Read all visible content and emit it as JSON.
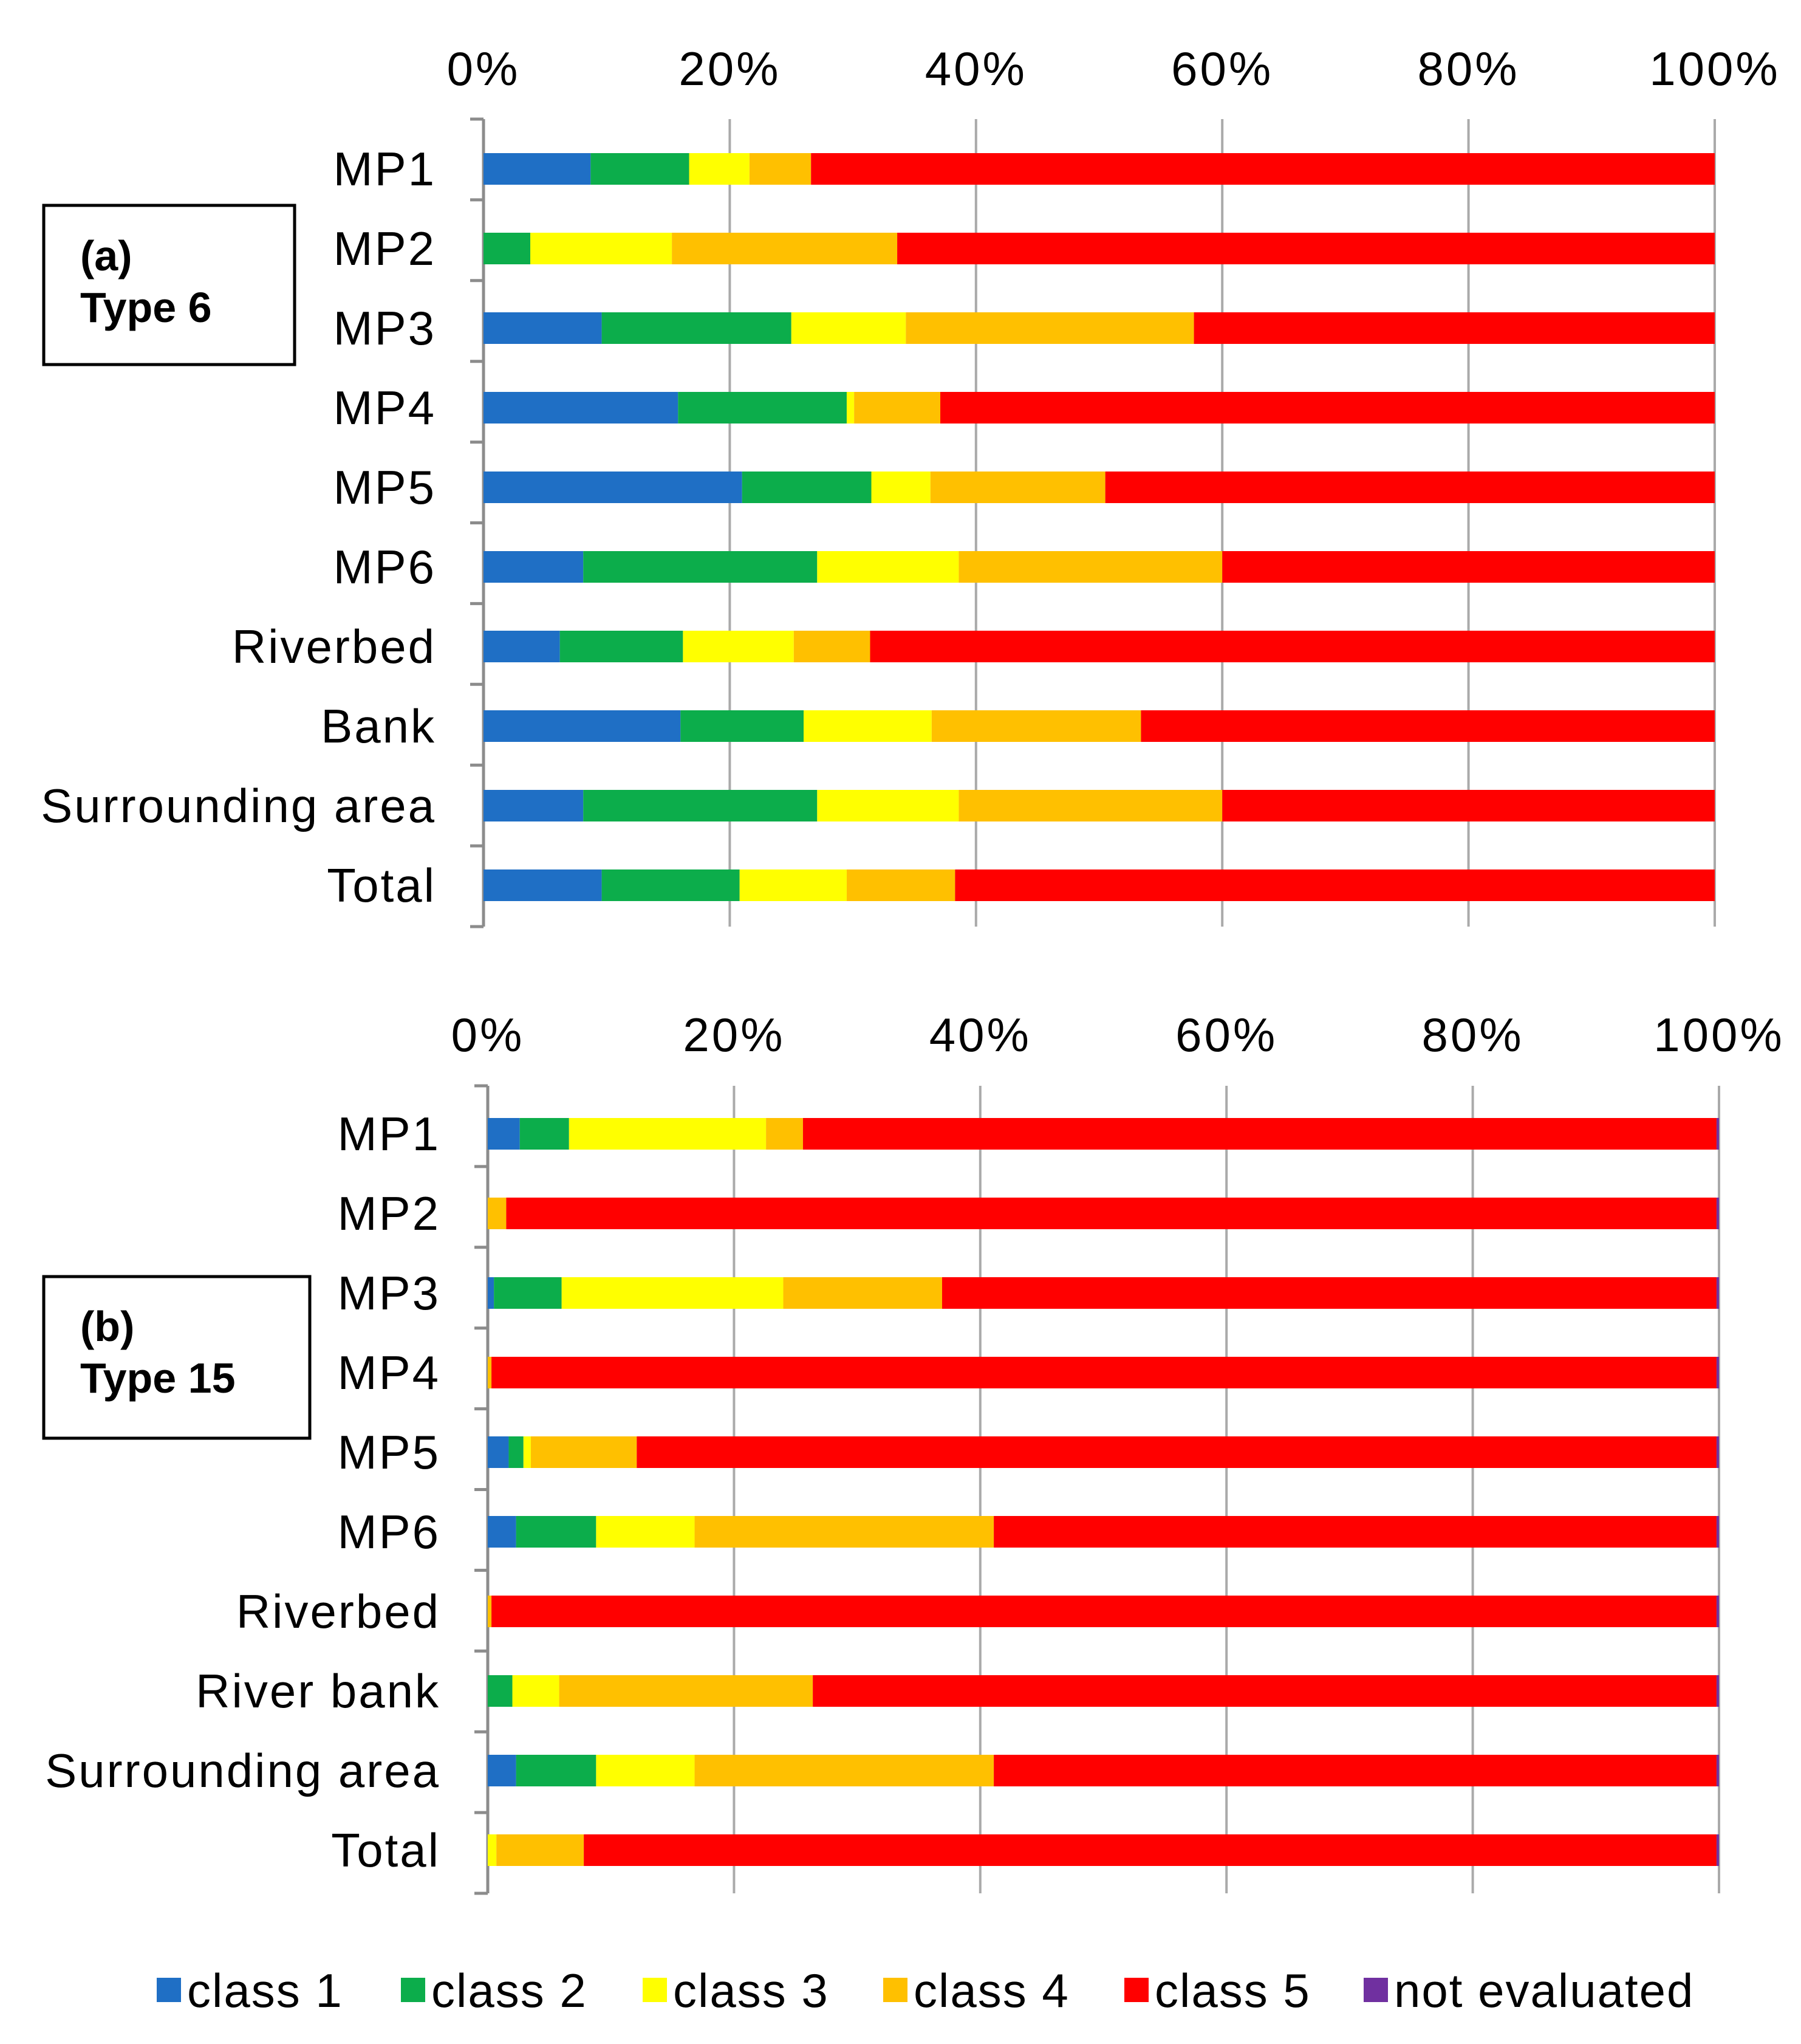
{
  "colors": {
    "class1": "#1f6fc5",
    "class2": "#0cad4b",
    "class3": "#ffff00",
    "class4": "#ffc000",
    "class5": "#ff0000",
    "not_evaluated": "#7030a0",
    "grid": "#aaaaaa"
  },
  "legend": [
    {
      "key": "class1",
      "label": "class 1"
    },
    {
      "key": "class2",
      "label": "class 2"
    },
    {
      "key": "class3",
      "label": "class 3"
    },
    {
      "key": "class4",
      "label": "class 4"
    },
    {
      "key": "class5",
      "label": "class 5"
    },
    {
      "key": "not_evaluated",
      "label": "not evaluated"
    }
  ],
  "chart_data": [
    {
      "type": "bar",
      "stacked": "percent",
      "orientation": "horizontal",
      "panel_label": [
        "(a)",
        "Type 6"
      ],
      "xlim": [
        0,
        100
      ],
      "xticks": [
        "0%",
        "20%",
        "40%",
        "60%",
        "80%",
        "100%"
      ],
      "categories": [
        "MP1",
        "MP2",
        "MP3",
        "MP4",
        "MP5",
        "MP6",
        "Riverbed",
        "Bank",
        "Surrounding area",
        "Total"
      ],
      "series": [
        {
          "name": "class 1",
          "key": "class1",
          "values": [
            8.7,
            0,
            9.6,
            15.8,
            21.0,
            8.1,
            6.2,
            16.0,
            8.1,
            9.6
          ]
        },
        {
          "name": "class 2",
          "key": "class2",
          "values": [
            8.0,
            3.8,
            15.4,
            13.7,
            10.5,
            19.0,
            10.0,
            10.0,
            19.0,
            11.2
          ]
        },
        {
          "name": "class 3",
          "key": "class3",
          "values": [
            4.9,
            11.5,
            9.3,
            0.6,
            4.8,
            11.5,
            9.0,
            10.4,
            11.5,
            8.7
          ]
        },
        {
          "name": "class 4",
          "key": "class4",
          "values": [
            5.0,
            18.3,
            23.4,
            7.0,
            14.2,
            21.4,
            6.2,
            17.0,
            21.4,
            8.8
          ]
        },
        {
          "name": "class 5",
          "key": "class5",
          "values": [
            73.4,
            66.4,
            42.3,
            62.9,
            49.5,
            40.0,
            68.6,
            46.6,
            40.0,
            61.7
          ]
        },
        {
          "name": "not evaluated",
          "key": "not_evaluated",
          "values": [
            0,
            0,
            0,
            0,
            0,
            0,
            0,
            0,
            0,
            0
          ]
        }
      ]
    },
    {
      "type": "bar",
      "stacked": "percent",
      "orientation": "horizontal",
      "panel_label": [
        "(b)",
        "Type 15"
      ],
      "xlim": [
        0,
        100
      ],
      "xticks": [
        "0%",
        "20%",
        "40%",
        "60%",
        "80%",
        "100%"
      ],
      "categories": [
        "MP1",
        "MP2",
        "MP3",
        "MP4",
        "MP5",
        "MP6",
        "Riverbed",
        "River bank",
        "Surrounding area",
        "Total"
      ],
      "series": [
        {
          "name": "class 1",
          "key": "class1",
          "values": [
            2.6,
            0,
            0.5,
            0,
            1.7,
            2.3,
            0,
            0,
            2.3,
            0
          ]
        },
        {
          "name": "class 2",
          "key": "class2",
          "values": [
            4.0,
            0,
            5.5,
            0,
            1.2,
            6.5,
            0,
            2.0,
            6.5,
            0
          ]
        },
        {
          "name": "class 3",
          "key": "class3",
          "values": [
            16.0,
            0,
            18.0,
            0,
            0.6,
            8.0,
            0,
            3.8,
            8.0,
            0.7
          ]
        },
        {
          "name": "class 4",
          "key": "class4",
          "values": [
            3.0,
            1.5,
            12.9,
            0.3,
            8.6,
            24.3,
            0.3,
            20.6,
            24.3,
            7.1
          ]
        },
        {
          "name": "class 5",
          "key": "class5",
          "values": [
            74.2,
            98.3,
            62.9,
            99.5,
            87.7,
            58.7,
            99.5,
            73.4,
            58.7,
            92.0
          ]
        },
        {
          "name": "not evaluated",
          "key": "not_evaluated",
          "values": [
            0.2,
            0.2,
            0.2,
            0.2,
            0.2,
            0.2,
            0.2,
            0.2,
            0.2,
            0.2
          ]
        }
      ]
    }
  ]
}
